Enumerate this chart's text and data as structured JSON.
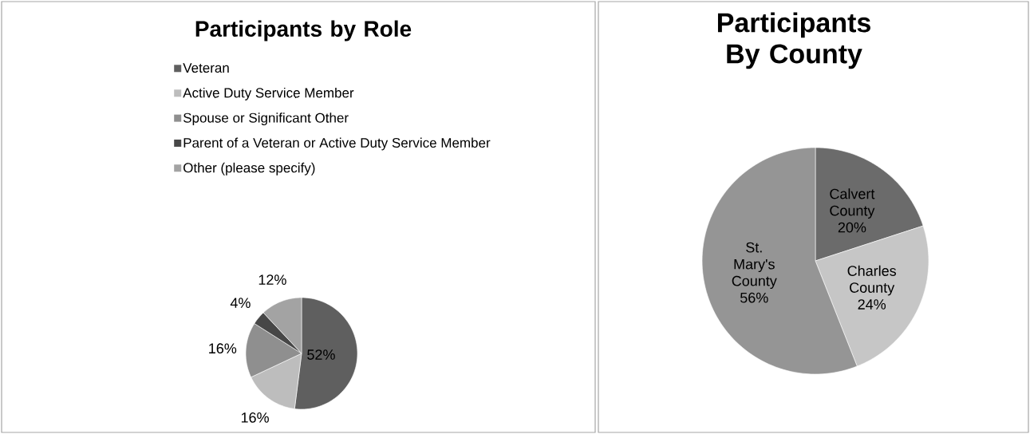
{
  "chart_data": [
    {
      "type": "pie",
      "title": "Participants by Role",
      "categories": [
        "Veteran",
        "Active Duty Service Member",
        "Spouse or Significant Other",
        "Parent of a Veteran or Active Duty Service Member",
        "Other (please specify)"
      ],
      "values": [
        52,
        16,
        16,
        4,
        12
      ],
      "value_labels": [
        "52%",
        "16%",
        "16%",
        "4%",
        "12%"
      ],
      "colors": [
        "#5f5f5f",
        "#bdbdbd",
        "#8f8f8f",
        "#474747",
        "#a3a3a3"
      ],
      "legend": "top"
    },
    {
      "type": "pie",
      "title": "Participants By County",
      "categories": [
        "Calvert County",
        "Charles County",
        "St. Mary's County"
      ],
      "values": [
        20,
        24,
        56
      ],
      "value_labels": [
        "20%",
        "24%",
        "56%"
      ],
      "colors": [
        "#6b6b6b",
        "#c6c6c6",
        "#959595"
      ],
      "legend": false
    }
  ]
}
